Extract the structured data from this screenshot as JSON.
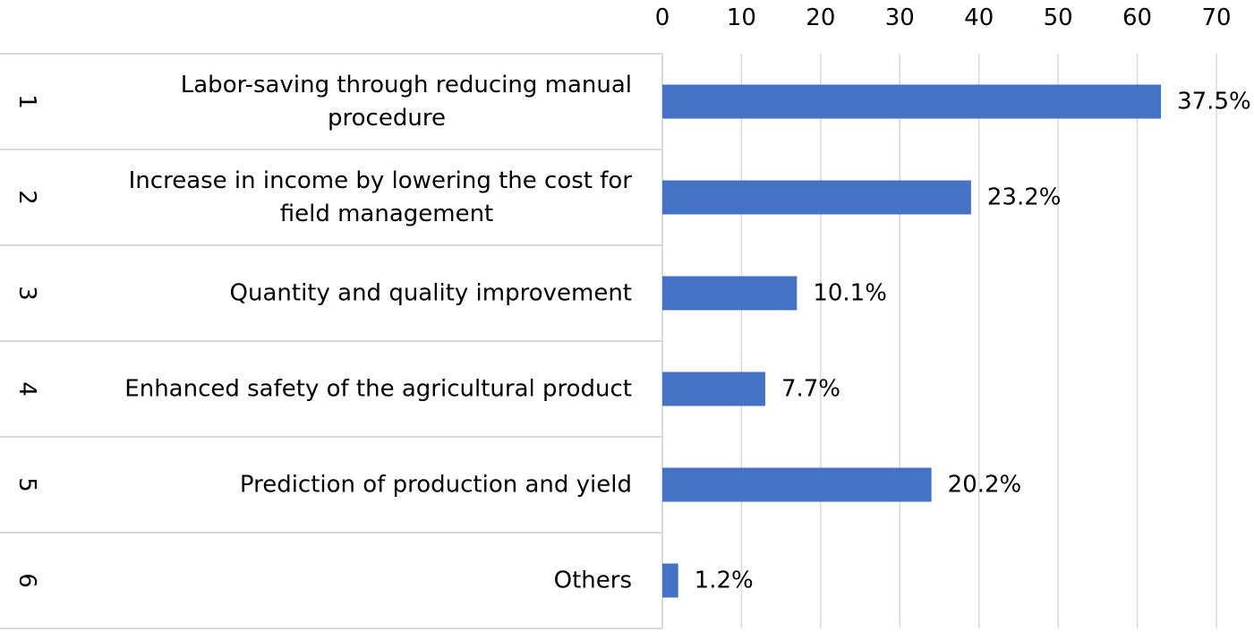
{
  "chart_data": {
    "type": "bar",
    "orientation": "horizontal",
    "categories": [
      {
        "rank": "1",
        "label_lines": [
          "Labor-saving through reducing manual",
          "procedure"
        ]
      },
      {
        "rank": "2",
        "label_lines": [
          "Increase in income by lowering the cost for",
          "field management"
        ]
      },
      {
        "rank": "3",
        "label_lines": [
          "Quantity and quality improvement"
        ]
      },
      {
        "rank": "4",
        "label_lines": [
          "Enhanced safety of the agricultural product"
        ]
      },
      {
        "rank": "5",
        "label_lines": [
          "Prediction of production and yield"
        ]
      },
      {
        "rank": "6",
        "label_lines": [
          "Others"
        ]
      }
    ],
    "values": [
      63,
      39,
      17,
      13,
      34,
      2
    ],
    "data_labels": [
      "37.5%",
      "23.2%",
      "10.1%",
      "7.7%",
      "20.2%",
      "1.2%"
    ],
    "x_ticks": [
      "0",
      "10",
      "20",
      "30",
      "40",
      "50",
      "60",
      "70"
    ],
    "xlim": [
      0,
      70
    ],
    "axis_position": "top",
    "grid": true,
    "bar_color": "#4472C4",
    "grid_color": "#D9D9D9",
    "title": "",
    "xlabel": "",
    "ylabel": ""
  }
}
